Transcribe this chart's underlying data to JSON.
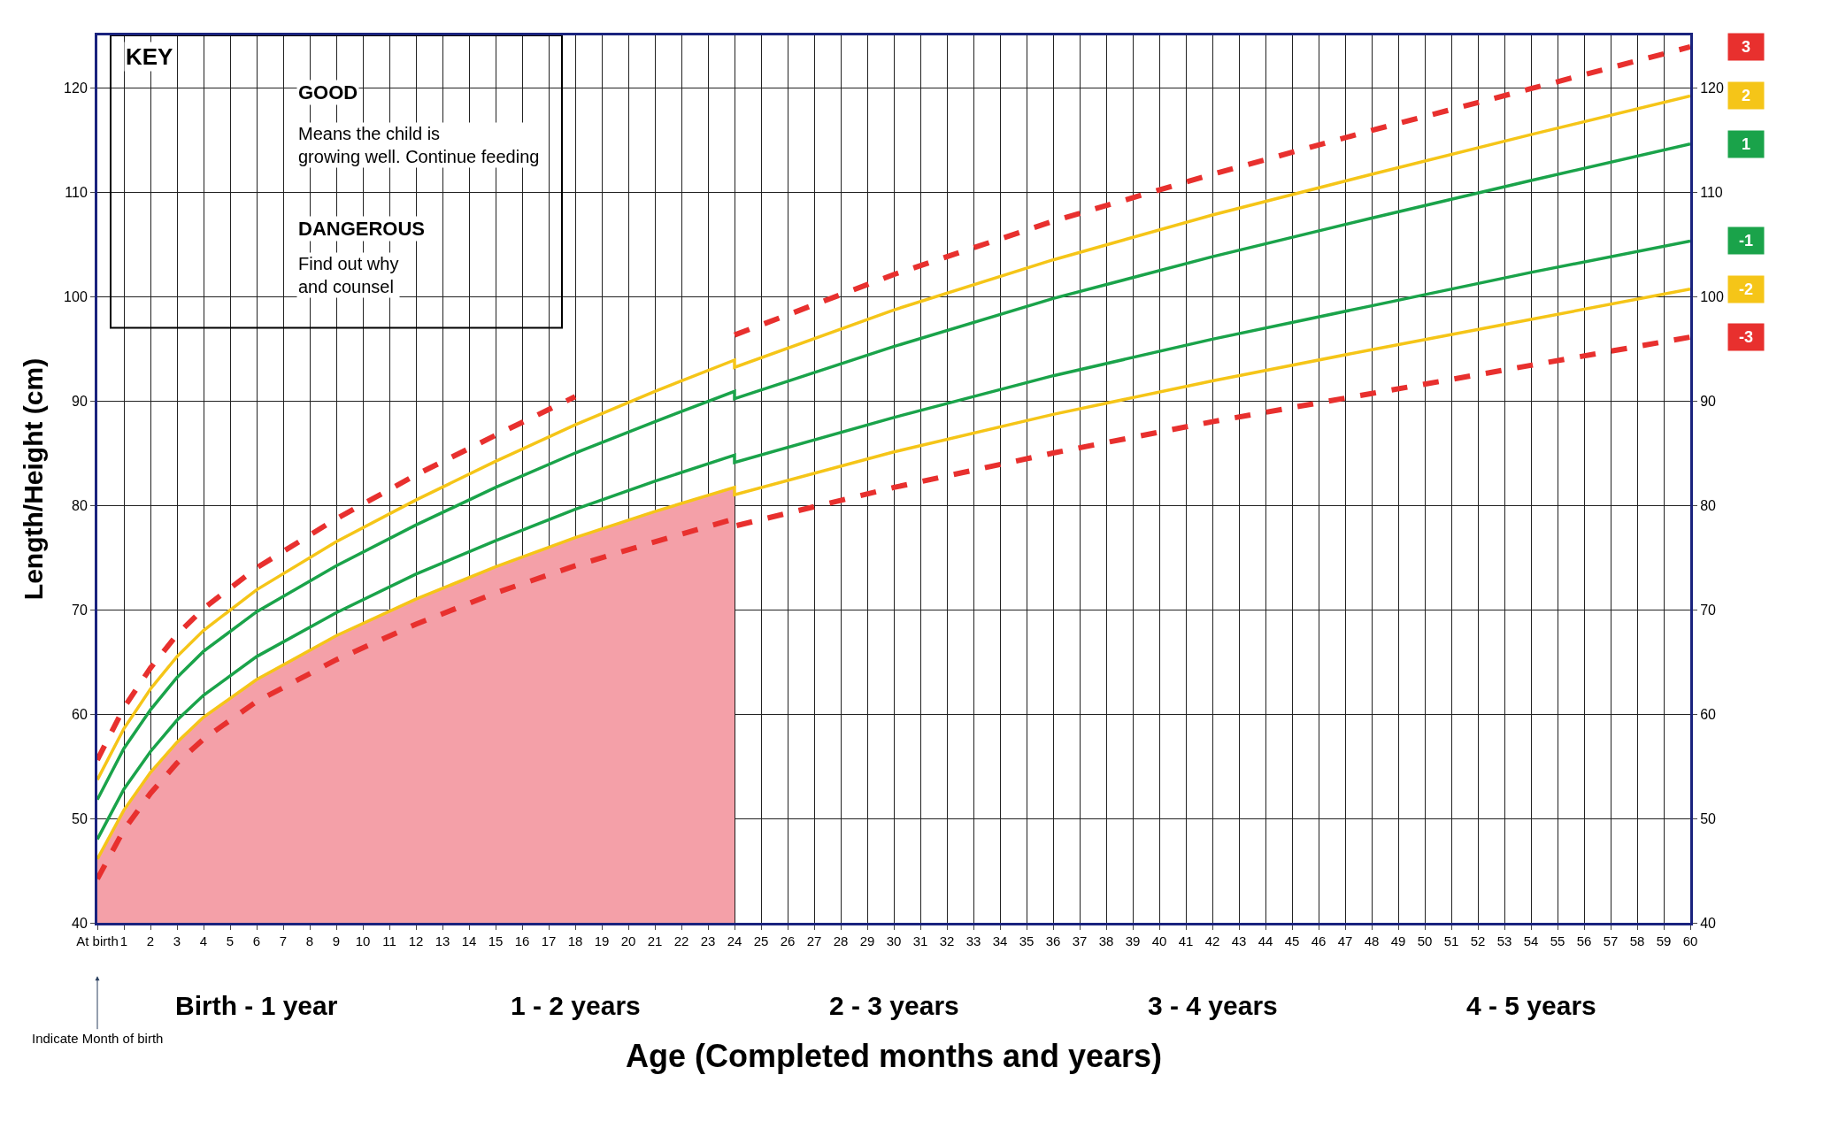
{
  "chart_data": {
    "type": "line",
    "xlabel": "Age (Completed months and years)",
    "ylabel": "Length/Height (cm)",
    "x": [
      0,
      1,
      2,
      3,
      4,
      6,
      9,
      12,
      15,
      18,
      21,
      24,
      24,
      30,
      36,
      42,
      48,
      54,
      60
    ],
    "series": [
      {
        "name": "3",
        "color": "#e8302e",
        "line_style": "dashed",
        "values": [
          55.6,
          60.6,
          64.4,
          67.6,
          70.1,
          74.0,
          78.7,
          82.9,
          86.7,
          90.4,
          null,
          null,
          96.3,
          102.1,
          107.2,
          111.7,
          115.9,
          119.9,
          123.9
        ]
      },
      {
        "name": "2",
        "color": "#f5c518",
        "line_style": "solid",
        "values": [
          53.7,
          58.6,
          62.4,
          65.5,
          68.0,
          71.9,
          76.5,
          80.5,
          84.2,
          87.7,
          90.9,
          93.9,
          93.2,
          98.7,
          103.5,
          107.8,
          111.7,
          115.5,
          119.2
        ]
      },
      {
        "name": "1",
        "color": "#1aa34a",
        "line_style": "solid",
        "values": [
          51.8,
          56.7,
          60.4,
          63.5,
          66.0,
          69.8,
          74.2,
          78.1,
          81.7,
          85.0,
          88.0,
          90.9,
          90.2,
          95.2,
          99.8,
          103.8,
          107.5,
          111.1,
          114.6
        ]
      },
      {
        "name": "-1",
        "color": "#1aa34a",
        "line_style": "solid",
        "values": [
          48.0,
          52.8,
          56.4,
          59.4,
          61.8,
          65.5,
          69.7,
          73.4,
          76.6,
          79.6,
          82.3,
          84.8,
          84.1,
          88.4,
          92.4,
          95.9,
          99.1,
          102.3,
          105.3
        ]
      },
      {
        "name": "-2",
        "color": "#f5c518",
        "line_style": "solid",
        "values": [
          46.1,
          50.8,
          54.4,
          57.3,
          59.7,
          63.3,
          67.5,
          71.0,
          74.1,
          76.9,
          79.4,
          81.7,
          81.0,
          85.1,
          88.7,
          91.9,
          94.9,
          97.8,
          100.7
        ]
      },
      {
        "name": "-3",
        "color": "#e8302e",
        "line_style": "dashed",
        "values": [
          44.2,
          48.9,
          52.4,
          55.3,
          57.6,
          61.2,
          65.2,
          68.6,
          71.6,
          74.2,
          76.5,
          78.7,
          78.0,
          81.7,
          85.0,
          88.0,
          90.7,
          93.4,
          96.1
        ]
      },
      {
        "type": "area",
        "color": "#f4a0a8",
        "x": [
          0,
          1,
          2,
          3,
          4,
          6,
          9,
          12,
          15,
          18,
          21,
          24
        ],
        "values": [
          46.1,
          50.8,
          54.4,
          57.3,
          59.7,
          63.3,
          67.5,
          71.0,
          74.1,
          76.9,
          79.4,
          81.7
        ]
      }
    ],
    "xlim": [
      0,
      60
    ],
    "xticks": [
      {
        "value": 0,
        "label": "At birth"
      },
      1,
      2,
      3,
      4,
      5,
      6,
      7,
      8,
      9,
      10,
      11,
      12,
      13,
      14,
      15,
      16,
      17,
      18,
      19,
      20,
      21,
      22,
      23,
      24,
      25,
      26,
      27,
      28,
      29,
      30,
      31,
      32,
      33,
      34,
      35,
      36,
      37,
      38,
      39,
      40,
      41,
      42,
      43,
      44,
      45,
      46,
      47,
      48,
      49,
      50,
      51,
      52,
      53,
      54,
      55,
      56,
      57,
      58,
      59,
      60
    ],
    "ylim": [
      40,
      125
    ],
    "yticks": [
      40,
      50,
      60,
      70,
      80,
      90,
      100,
      110,
      120
    ],
    "y2lim": [
      40,
      125
    ],
    "y2ticks": [
      40,
      50,
      60,
      70,
      80,
      90,
      100,
      110,
      120
    ],
    "grid": true,
    "legend": false,
    "marker": "none",
    "annotations": [
      "KEY",
      "GOOD",
      "Means the child is growing well. Continue feeding",
      "DANGEROUS",
      "Find out why and counsel",
      "Birth - 1 year",
      "1 - 2 years",
      "2 - 3 years",
      "3 - 4 years",
      "4 - 5 years",
      "Indicate Month of birth"
    ]
  }
}
